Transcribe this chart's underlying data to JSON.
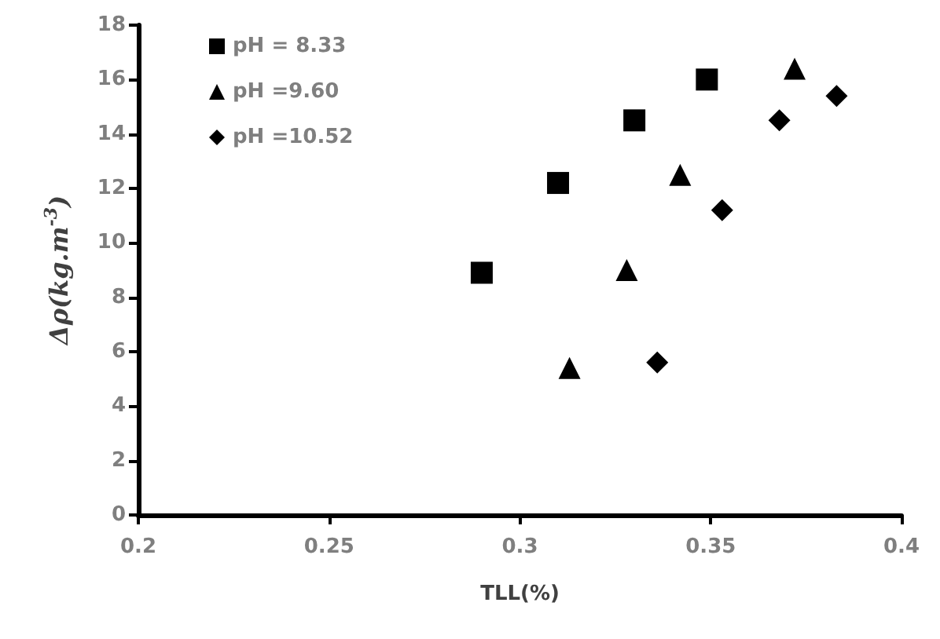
{
  "chart_data": {
    "type": "scatter",
    "xlabel": "TLL(%)",
    "ylabel": "Δρ(kg.m$^{-3}$)",
    "xlim": [
      0.2,
      0.4
    ],
    "xticks": [
      0.2,
      0.25,
      0.3,
      0.35,
      0.4
    ],
    "ylim": [
      0,
      18
    ],
    "yticks": [
      0,
      2,
      4,
      6,
      8,
      10,
      12,
      14,
      16,
      18
    ],
    "grid": false,
    "legend": "top left",
    "series": [
      {
        "name": "pH = 8.33",
        "color": "#000000",
        "marker": "square",
        "x": [
          0.29,
          0.31,
          0.33,
          0.349
        ],
        "values": [
          8.9,
          12.2,
          14.5,
          16.0
        ]
      },
      {
        "name": "pH =9.60",
        "color": "#000000",
        "marker": "triangle",
        "x": [
          0.313,
          0.328,
          0.342,
          0.372
        ],
        "values": [
          5.4,
          9.0,
          12.5,
          16.4
        ]
      },
      {
        "name": "pH =10.52",
        "color": "#000000",
        "marker": "diamond",
        "x": [
          0.336,
          0.353,
          0.368,
          0.383
        ],
        "values": [
          5.6,
          11.2,
          14.5,
          15.4
        ]
      }
    ]
  }
}
